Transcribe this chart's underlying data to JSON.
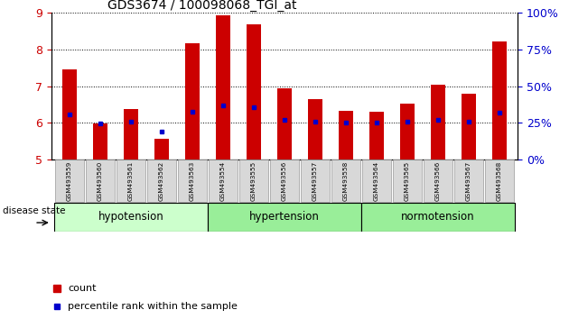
{
  "title": "GDS3674 / 100098068_TGI_at",
  "samples": [
    "GSM493559",
    "GSM493560",
    "GSM493561",
    "GSM493562",
    "GSM493563",
    "GSM493554",
    "GSM493555",
    "GSM493556",
    "GSM493557",
    "GSM493558",
    "GSM493564",
    "GSM493565",
    "GSM493566",
    "GSM493567",
    "GSM493568"
  ],
  "count_values": [
    7.45,
    5.98,
    6.37,
    5.57,
    8.18,
    8.93,
    8.68,
    6.93,
    6.65,
    6.33,
    6.3,
    6.53,
    7.05,
    6.8,
    8.22
  ],
  "percentile_values": [
    6.22,
    5.98,
    6.02,
    5.76,
    6.3,
    6.47,
    6.43,
    6.08,
    6.03,
    6.01,
    6.01,
    6.02,
    6.08,
    6.03,
    6.27
  ],
  "bar_color": "#cc0000",
  "marker_color": "#0000cc",
  "ylim_left": [
    5,
    9
  ],
  "ylim_right": [
    0,
    100
  ],
  "yticks_left": [
    5,
    6,
    7,
    8,
    9
  ],
  "yticks_right": [
    0,
    25,
    50,
    75,
    100
  ],
  "ytick_labels_right": [
    "0%",
    "25%",
    "50%",
    "75%",
    "100%"
  ],
  "groups": [
    {
      "name": "hypotension",
      "start": 0,
      "end": 5,
      "color": "#bbffbb"
    },
    {
      "name": "hypertension",
      "start": 5,
      "end": 10,
      "color": "#88ee88"
    },
    {
      "name": "normotension",
      "start": 10,
      "end": 15,
      "color": "#77dd77"
    }
  ],
  "bar_width": 0.45,
  "legend_count_label": "count",
  "legend_percentile_label": "percentile rank within the sample",
  "disease_state_label": "disease state",
  "bar_color_left": "#cc0000",
  "tick_label_color_left": "#cc0000",
  "tick_label_color_right": "#0000cc"
}
